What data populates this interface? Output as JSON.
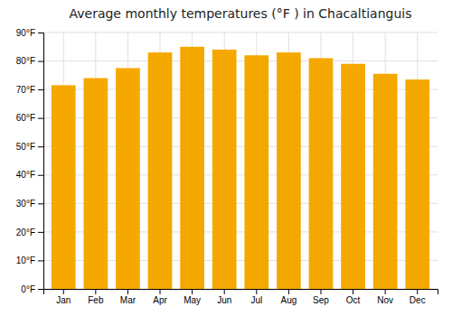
{
  "chart_data": {
    "type": "bar",
    "title": "Average monthly temperatures (°F ) in Chacaltianguis",
    "categories": [
      "Jan",
      "Feb",
      "Mar",
      "Apr",
      "May",
      "Jun",
      "Jul",
      "Aug",
      "Sep",
      "Oct",
      "Nov",
      "Dec"
    ],
    "values": [
      71.5,
      74.0,
      77.5,
      83.0,
      85.0,
      84.0,
      82.0,
      83.0,
      81.0,
      79.0,
      75.5,
      73.5
    ],
    "color": "#F5A800",
    "ylim": [
      0,
      90
    ],
    "yticks": [
      {
        "value": 0,
        "label": "0°F"
      },
      {
        "value": 10,
        "label": "10°F"
      },
      {
        "value": 20,
        "label": "20°F"
      },
      {
        "value": 30,
        "label": "30°F"
      },
      {
        "value": 40,
        "label": "40°F"
      },
      {
        "value": 50,
        "label": "50°F"
      },
      {
        "value": 60,
        "label": "60°F"
      },
      {
        "value": 70,
        "label": "70°F"
      },
      {
        "value": 80,
        "label": "80°F"
      },
      {
        "value": 90,
        "label": "90°F"
      }
    ],
    "grid": true
  }
}
